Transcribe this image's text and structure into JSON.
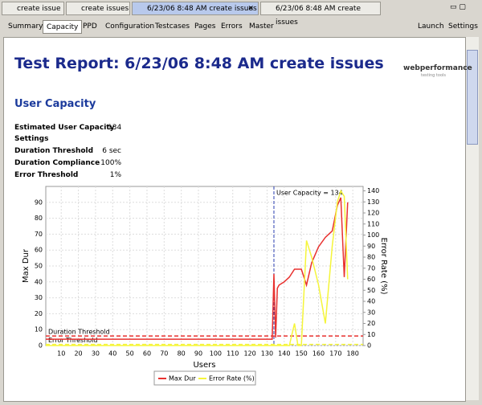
{
  "tabs": [
    "create issue",
    "create issues",
    "6/23/06 8:48 AM create issues",
    "6/23/06 8:48 AM create issues"
  ],
  "toolbar": {
    "left": [
      "Summary",
      "Capacity",
      "PPD",
      "Configuration",
      "Testcases",
      "Pages",
      "Errors",
      "Master"
    ],
    "right": [
      "Launch",
      "Settings"
    ]
  },
  "report": {
    "title": "Test Report: 6/23/06 8:48 AM create issues",
    "logo": "webperformance",
    "logo_sub": "testing tools",
    "heading": "User Capacity",
    "rows": [
      [
        "Estimated User Capacity",
        "134"
      ],
      [
        "Settings"
      ],
      [
        "Duration Threshold",
        "6 sec"
      ],
      [
        "Duration Compliance",
        "100%"
      ],
      [
        "Error Threshold",
        "1%"
      ]
    ]
  },
  "chart": {
    "type": "line",
    "x_label": "Users",
    "y_label": "Max Dur",
    "y2_label": "Error Rate (%)",
    "xlim": [
      1,
      186
    ],
    "xticks": [
      10,
      20,
      30,
      40,
      50,
      60,
      70,
      80,
      90,
      100,
      110,
      120,
      130,
      140,
      150,
      160,
      170,
      180
    ],
    "ylim": [
      0,
      100
    ],
    "yticks": [
      0,
      10,
      20,
      30,
      40,
      50,
      60,
      70,
      80,
      90
    ],
    "y2lim": [
      0,
      144
    ],
    "y2ticks": [
      0,
      10,
      20,
      30,
      40,
      50,
      60,
      70,
      80,
      90,
      100,
      110,
      120,
      130,
      140
    ],
    "grid": true,
    "x": [
      1,
      20,
      40,
      60,
      80,
      100,
      120,
      133,
      134,
      135,
      136,
      137,
      140,
      143,
      146,
      148,
      150,
      153,
      156,
      160,
      164,
      168,
      171,
      173,
      175,
      177
    ],
    "series": [
      {
        "name": "Max Dur",
        "color": "#e8312f",
        "values": [
          4,
          4,
          4,
          4,
          4,
          4,
          4,
          4,
          45,
          5,
          36,
          38,
          40,
          43,
          48,
          48,
          48,
          38,
          52,
          62,
          68,
          72,
          88,
          93,
          43,
          90
        ]
      },
      {
        "name": "Error Rate (%)",
        "color": "#f5f53a",
        "axis": "y2",
        "values": [
          0,
          0,
          0,
          0,
          0,
          0,
          0,
          0,
          0,
          0,
          0,
          0,
          0,
          0,
          20,
          0,
          0,
          95,
          80,
          55,
          20,
          90,
          130,
          140,
          135,
          60
        ]
      }
    ],
    "annotations": [
      {
        "text": "User Capacity = 134",
        "x": 134,
        "color": "#2c3fb0"
      },
      {
        "text": "Duration Threshold",
        "y": 6,
        "color": "#e8312f"
      },
      {
        "text": "Error Threshold",
        "y2": 1,
        "color": "#f5f53a"
      }
    ]
  }
}
